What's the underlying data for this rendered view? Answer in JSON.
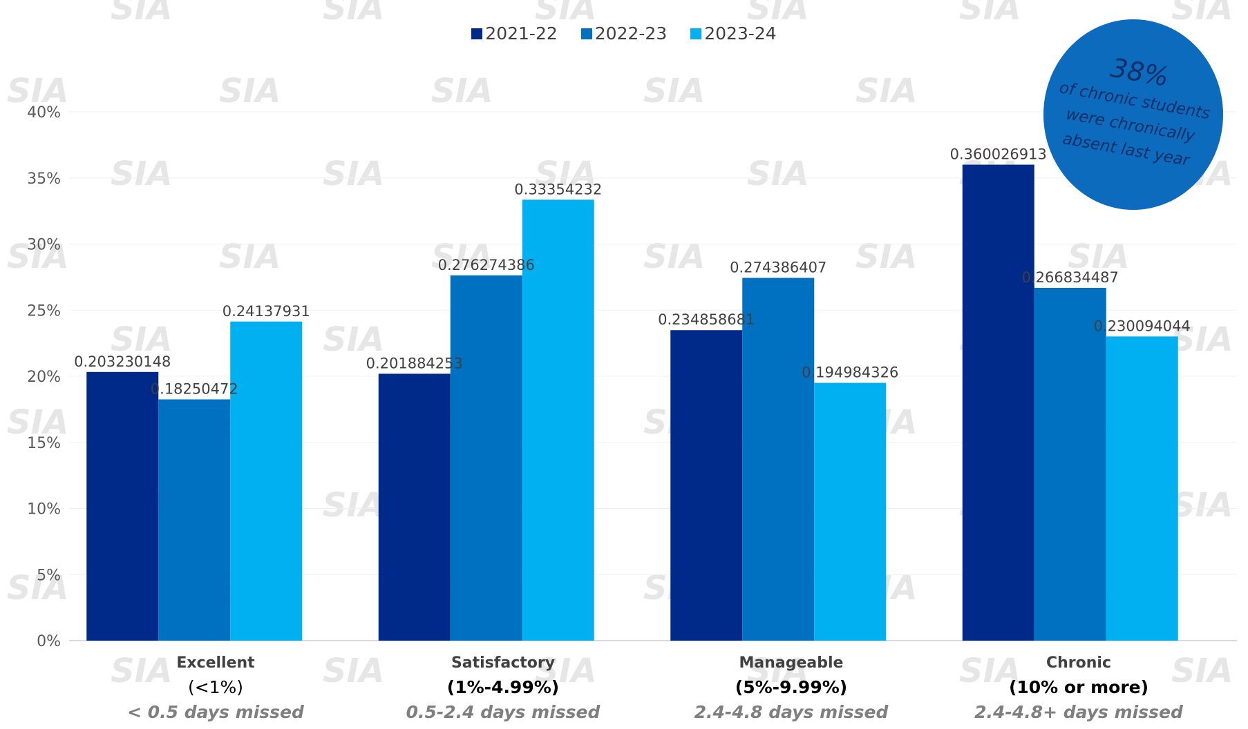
{
  "chart_data": {
    "type": "bar",
    "categories": [
      "Excellent",
      "Satisfactory",
      "Manageable",
      "Chronic"
    ],
    "category_ranges": [
      "(<1%)",
      "(1%-4.99%)",
      "(5%-9.99%)",
      "(10% or more)"
    ],
    "category_days": [
      "< 0.5 days missed",
      "0.5-2.4 days missed",
      "2.4-4.8 days missed",
      "2.4-4.8+ days missed"
    ],
    "series": [
      {
        "name": "2021-22",
        "color": "#002a8a",
        "values": [
          0.203230148,
          0.201884253,
          0.234858681,
          0.360026913
        ]
      },
      {
        "name": "2022-23",
        "color": "#0070c0",
        "values": [
          0.18250472,
          0.276274386,
          0.274386407,
          0.266834487
        ]
      },
      {
        "name": "2023-24",
        "color": "#00b0f0",
        "values": [
          0.24137931,
          0.33354232,
          0.194984326,
          0.230094044
        ]
      }
    ],
    "data_labels": [
      [
        "0.203230148",
        "0.201884253",
        "0.234858681",
        "0.360026913"
      ],
      [
        "0.18250472",
        "0.276274386",
        "0.274386407",
        "0.266834487"
      ],
      [
        "0.24137931",
        "0.33354232",
        "0.194984326",
        "0.230094044"
      ]
    ],
    "y_ticks": [
      "0%",
      "5%",
      "10%",
      "15%",
      "20%",
      "25%",
      "30%",
      "35%",
      "40%"
    ],
    "ylim": [
      0,
      0.4
    ],
    "grid": true,
    "legend_position": "top-center",
    "watermark": "SIA"
  },
  "callout": {
    "percent": "38%",
    "text_lines": [
      "of chronic students",
      "were chronically",
      "absent last year"
    ],
    "color": "#0d6bbd"
  }
}
